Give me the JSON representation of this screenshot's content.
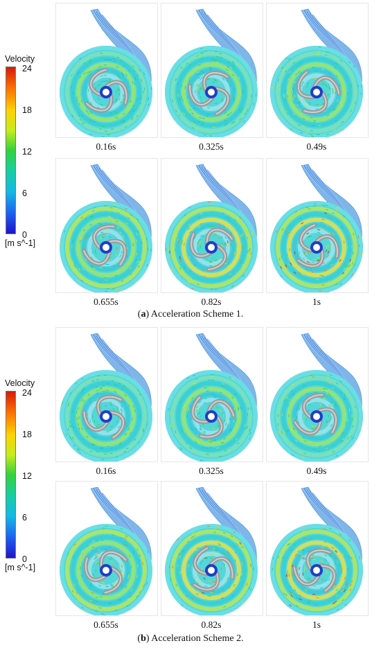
{
  "legend": {
    "title": "Velocity",
    "ticks": [
      "24",
      "18",
      "12",
      "6",
      "0"
    ],
    "unit": "[m s^-1]",
    "colors": [
      "#1e14c8",
      "#1d5ff0",
      "#13b9e6",
      "#16cfa0",
      "#33d23a",
      "#c6ec1c",
      "#ffd200",
      "#ff7a00",
      "#d41c0c"
    ]
  },
  "schemes": [
    {
      "id": "a",
      "caption_letter": "a",
      "caption_text": " Acceleration Scheme 1.",
      "times": [
        "0.16s",
        "0.325s",
        "0.49s",
        "0.655s",
        "0.82s",
        "1s"
      ]
    },
    {
      "id": "b",
      "caption_letter": "b",
      "caption_text": " Acceleration Scheme 2.",
      "times": [
        "0.16s",
        "0.325s",
        "0.49s",
        "0.655s",
        "0.82s",
        "1s"
      ]
    }
  ]
}
